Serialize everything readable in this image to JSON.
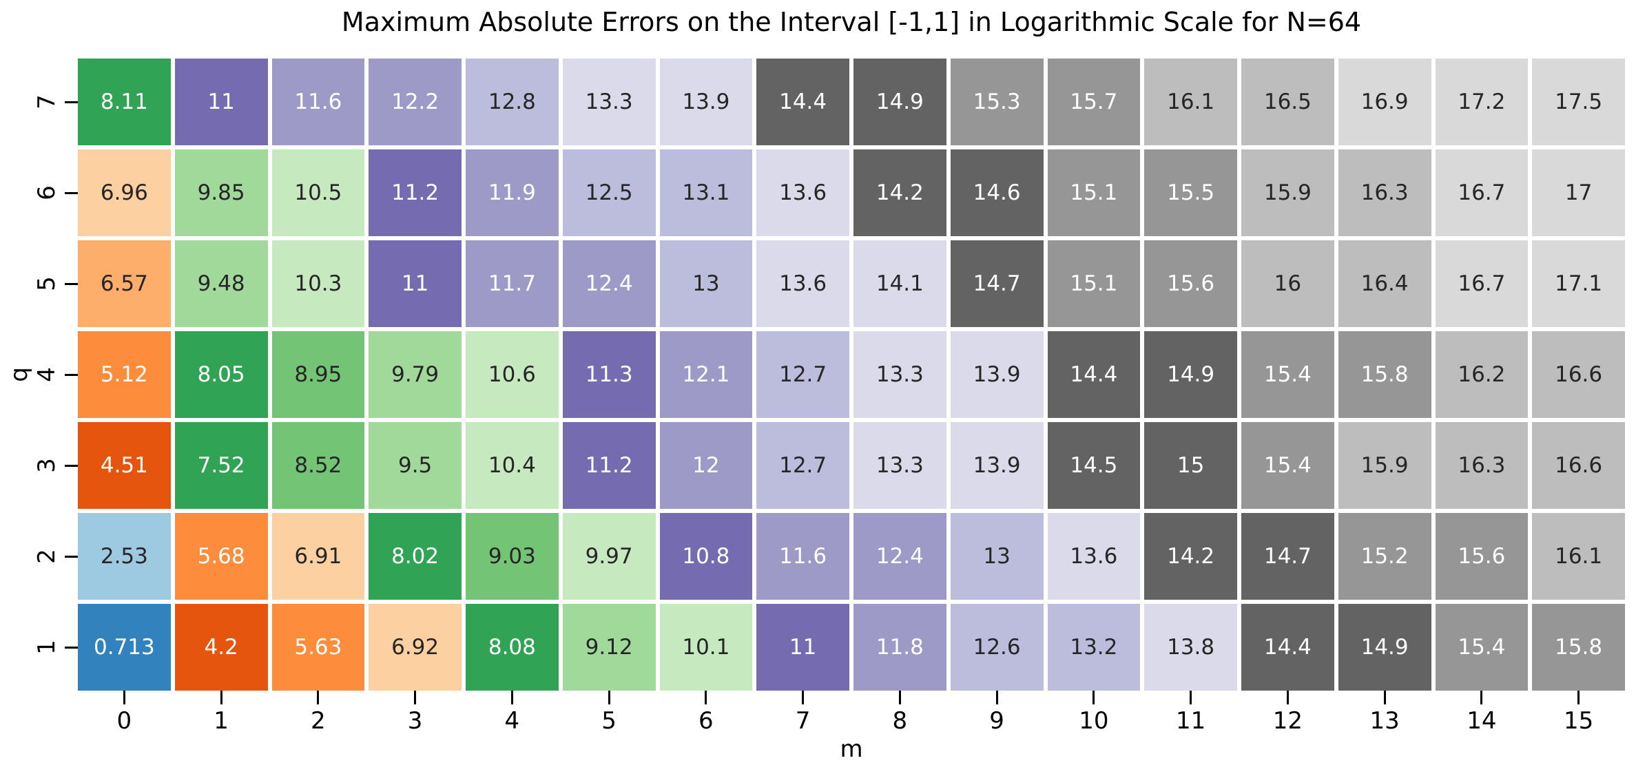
{
  "chart_data": {
    "type": "heatmap",
    "title": "Maximum Absolute Errors on the Interval [-1,1] in Logarithmic Scale for N=64",
    "xlabel": "m",
    "ylabel": "q",
    "x_tick_labels": [
      "0",
      "1",
      "2",
      "3",
      "4",
      "5",
      "6",
      "7",
      "8",
      "9",
      "10",
      "11",
      "12",
      "13",
      "14",
      "15"
    ],
    "y_tick_labels_top_to_bottom": [
      "7",
      "6",
      "5",
      "4",
      "3",
      "2",
      "1"
    ],
    "colormap": "tab20c",
    "grid_line_color": "#ffffff",
    "value_range": {
      "min": 0.713,
      "max": 17.5
    },
    "palette": [
      "#3182bd",
      "#6baed6",
      "#9ecae1",
      "#c6dbef",
      "#e6550d",
      "#fd8d3c",
      "#fdae6b",
      "#fdd0a2",
      "#31a354",
      "#74c476",
      "#a1d99b",
      "#c7e9c0",
      "#756bb1",
      "#9e9ac8",
      "#bcbddc",
      "#dadaeb",
      "#636363",
      "#969696",
      "#bdbdbd",
      "#d9d9d9"
    ],
    "light_text_band_indices": [
      0,
      4,
      5,
      8,
      12,
      13,
      16,
      17
    ],
    "text_colors": {
      "light": "#ffffff",
      "dark": "#262626"
    },
    "rows": [
      {
        "q": "7",
        "values": [
          "8.11",
          "11",
          "11.6",
          "12.2",
          "12.8",
          "13.3",
          "13.9",
          "14.4",
          "14.9",
          "15.3",
          "15.7",
          "16.1",
          "16.5",
          "16.9",
          "17.2",
          "17.5"
        ],
        "color_bands": [
          8,
          12,
          13,
          13,
          14,
          15,
          15,
          16,
          16,
          17,
          17,
          18,
          18,
          19,
          19,
          19
        ]
      },
      {
        "q": "6",
        "values": [
          "6.96",
          "9.85",
          "10.5",
          "11.2",
          "11.9",
          "12.5",
          "13.1",
          "13.6",
          "14.2",
          "14.6",
          "15.1",
          "15.5",
          "15.9",
          "16.3",
          "16.7",
          "17"
        ],
        "color_bands": [
          7,
          10,
          11,
          12,
          13,
          14,
          14,
          15,
          16,
          16,
          17,
          17,
          18,
          18,
          19,
          19
        ]
      },
      {
        "q": "5",
        "values": [
          "6.57",
          "9.48",
          "10.3",
          "11",
          "11.7",
          "12.4",
          "13",
          "13.6",
          "14.1",
          "14.7",
          "15.1",
          "15.6",
          "16",
          "16.4",
          "16.7",
          "17.1"
        ],
        "color_bands": [
          6,
          10,
          11,
          12,
          13,
          13,
          14,
          15,
          15,
          16,
          17,
          17,
          18,
          18,
          19,
          19
        ]
      },
      {
        "q": "4",
        "values": [
          "5.12",
          "8.05",
          "8.95",
          "9.79",
          "10.6",
          "11.3",
          "12.1",
          "12.7",
          "13.3",
          "13.9",
          "14.4",
          "14.9",
          "15.4",
          "15.8",
          "16.2",
          "16.6"
        ],
        "color_bands": [
          5,
          8,
          9,
          10,
          11,
          12,
          13,
          14,
          15,
          15,
          16,
          16,
          17,
          17,
          18,
          18
        ]
      },
      {
        "q": "3",
        "values": [
          "4.51",
          "7.52",
          "8.52",
          "9.5",
          "10.4",
          "11.2",
          "12",
          "12.7",
          "13.3",
          "13.9",
          "14.5",
          "15",
          "15.4",
          "15.9",
          "16.3",
          "16.6"
        ],
        "color_bands": [
          4,
          8,
          9,
          10,
          11,
          12,
          13,
          14,
          15,
          15,
          16,
          16,
          17,
          18,
          18,
          18
        ]
      },
      {
        "q": "2",
        "values": [
          "2.53",
          "5.68",
          "6.91",
          "8.02",
          "9.03",
          "9.97",
          "10.8",
          "11.6",
          "12.4",
          "13",
          "13.6",
          "14.2",
          "14.7",
          "15.2",
          "15.6",
          "16.1"
        ],
        "color_bands": [
          2,
          5,
          7,
          8,
          9,
          11,
          12,
          13,
          13,
          14,
          15,
          16,
          16,
          17,
          17,
          18
        ]
      },
      {
        "q": "1",
        "values": [
          "0.713",
          "4.2",
          "5.63",
          "6.92",
          "8.08",
          "9.12",
          "10.1",
          "11",
          "11.8",
          "12.6",
          "13.2",
          "13.8",
          "14.4",
          "14.9",
          "15.4",
          "15.8"
        ],
        "color_bands": [
          0,
          4,
          5,
          7,
          8,
          10,
          11,
          12,
          13,
          14,
          14,
          15,
          16,
          16,
          17,
          17
        ]
      }
    ]
  }
}
